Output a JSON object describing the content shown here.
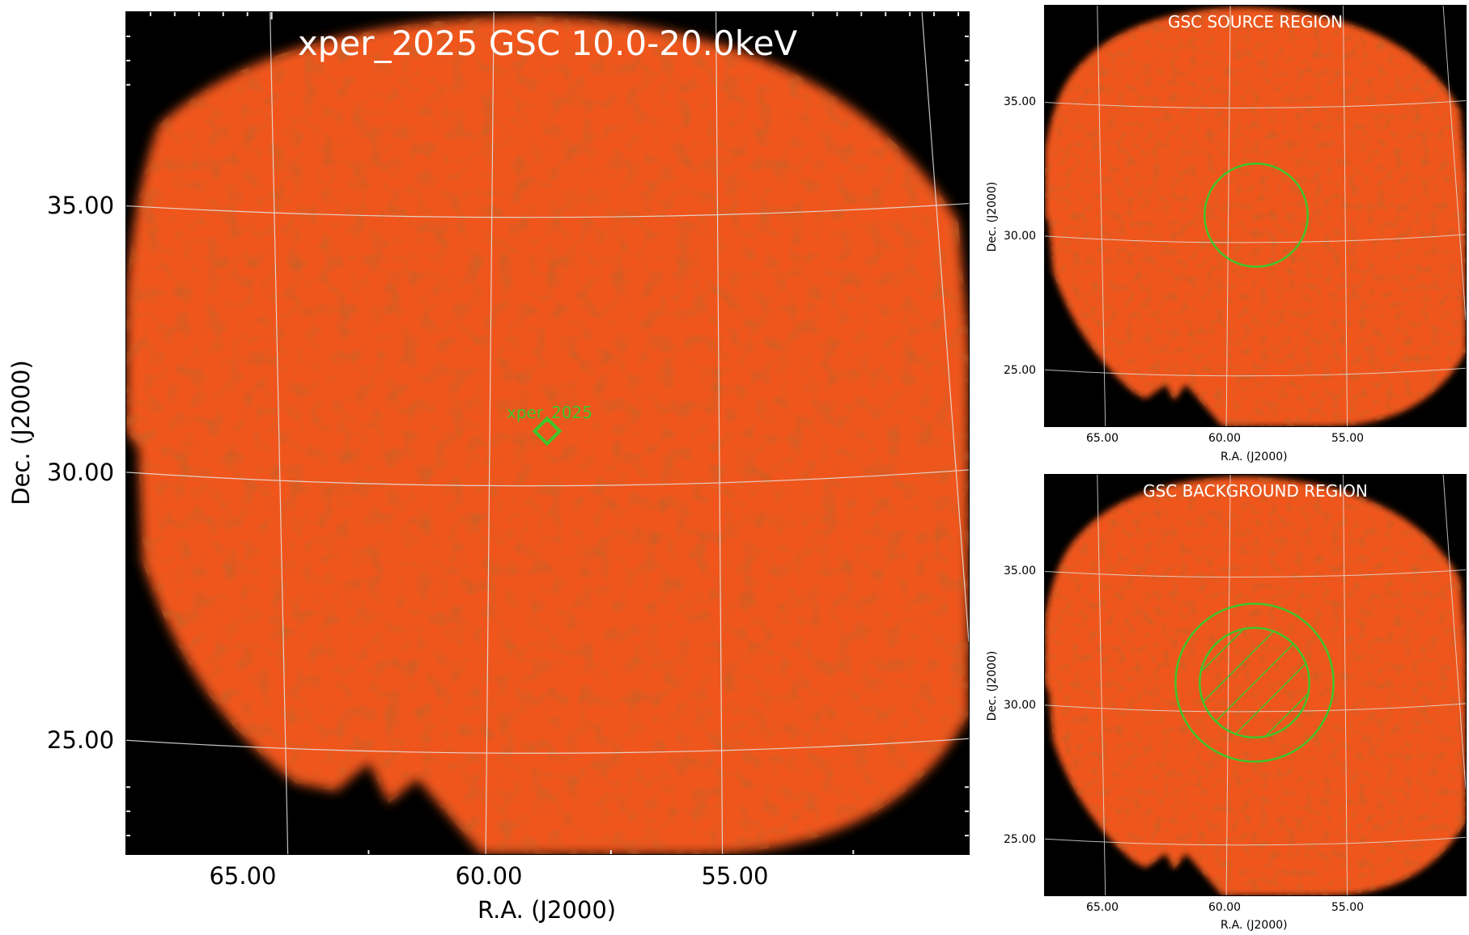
{
  "main": {
    "title": "xper_2025 GSC 10.0-20.0keV",
    "source_label": "xper_2025",
    "x_ticks": [
      "65.00",
      "60.00",
      "55.00"
    ],
    "y_ticks": [
      "35.00",
      "30.00",
      "25.00"
    ],
    "xlabel": "R.A. (J2000)",
    "ylabel": "Dec. (J2000)"
  },
  "source_panel": {
    "title": "GSC SOURCE REGION",
    "x_ticks": [
      "65.00",
      "60.00",
      "55.00"
    ],
    "y_ticks": [
      "35.00",
      "30.00",
      "25.00"
    ],
    "xlabel": "R.A. (J2000)",
    "ylabel": "Dec. (J2000)"
  },
  "background_panel": {
    "title": "GSC BACKGROUND REGION",
    "x_ticks": [
      "65.00",
      "60.00",
      "55.00"
    ],
    "y_ticks": [
      "35.00",
      "30.00",
      "25.00"
    ],
    "xlabel": "R.A. (J2000)",
    "ylabel": "Dec. (J2000)"
  },
  "colors": {
    "image_fill": "#f0571a",
    "region_green": "#3fc62a",
    "grid": "#e6e6e6",
    "background": "#000000"
  }
}
